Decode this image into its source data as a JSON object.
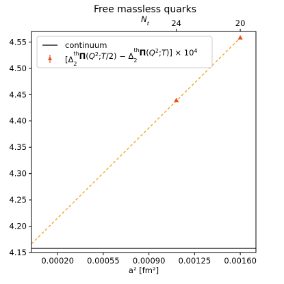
{
  "chart_data": {
    "type": "line",
    "title": "Free massless quarks",
    "xlabel": "a² [fm²]",
    "top_xlabel": "N_t",
    "ylabel": "",
    "xlim": [
      0.0,
      0.00172
    ],
    "ylim": [
      4.15,
      4.57
    ],
    "xticks": [
      0.0002,
      0.00055,
      0.0009,
      0.00125,
      0.0016
    ],
    "xtick_labels": [
      "0.00020",
      "0.00055",
      "0.00090",
      "0.00125",
      "0.00160"
    ],
    "yticks": [
      4.15,
      4.2,
      4.25,
      4.3,
      4.35,
      4.4,
      4.45,
      4.5,
      4.55
    ],
    "ytick_labels": [
      "4.15",
      "4.20",
      "4.25",
      "4.30",
      "4.35",
      "4.40",
      "4.45",
      "4.50",
      "4.55"
    ],
    "top_ticks": [
      {
        "label": "24",
        "x": 0.00111
      },
      {
        "label": "20",
        "x": 0.0016
      }
    ],
    "continuum": {
      "name": "continuum",
      "y": 4.158,
      "color": "#000000"
    },
    "series": [
      {
        "name": "[Δ₂ᵗʰΠ(Q²;T/2) − Δ₂ᵗʰΠ(Q²;T)] × 10⁴",
        "marker": "triangle",
        "color": "#e8521a",
        "x": [
          0.00111,
          0.0016
        ],
        "y": [
          4.439,
          4.558
        ]
      }
    ],
    "fit": {
      "style": "dashed",
      "color": "#f0a020",
      "x": [
        0.0,
        0.0016
      ],
      "y": [
        4.1665,
        4.558
      ]
    },
    "legend": {
      "placement": "top-left"
    },
    "grid": false
  }
}
